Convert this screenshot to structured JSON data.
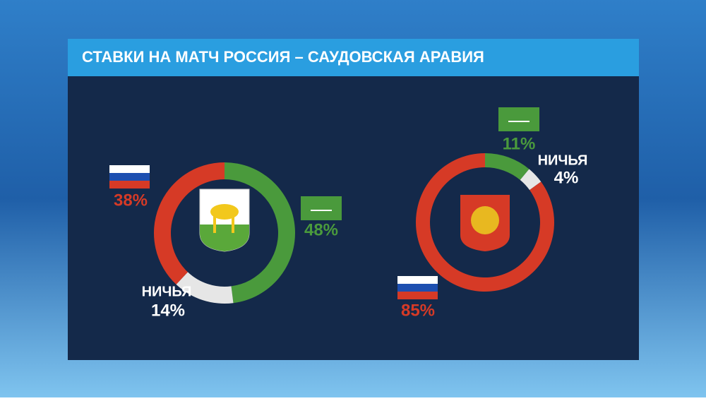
{
  "title": "СТАВКИ НА МАТЧ РОССИЯ – САУДОВСКАЯ АРАВИЯ",
  "chart_data": [
    {
      "type": "pie",
      "donut": true,
      "categories": [
        null,
        "НИЧЬЯ",
        null
      ],
      "values": [
        48,
        14,
        38
      ],
      "value_labels": [
        "48%",
        "14%",
        "38%"
      ],
      "colors": [
        "#4a9a3c",
        "#e6e6e6",
        "#d63a26"
      ]
    },
    {
      "type": "pie",
      "donut": true,
      "categories": [
        null,
        "НИЧЬЯ",
        null
      ],
      "values": [
        11,
        4,
        85
      ],
      "value_labels": [
        "11%",
        "4%",
        "85%"
      ],
      "colors": [
        "#4a9a3c",
        "#e6e6e6",
        "#d63a26"
      ]
    }
  ]
}
